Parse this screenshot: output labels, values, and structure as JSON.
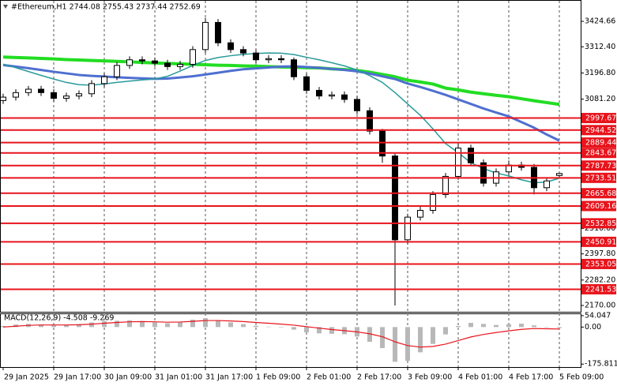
{
  "chart_data": [
    {
      "type": "candlestick",
      "title": "#Ethereum,H1  2744.08 2755.43 2737.44 2752.69",
      "categories": [
        "29 Jan 2025",
        null,
        null,
        null,
        "29 Jan 17:00",
        null,
        null,
        null,
        "30 Jan 09:00",
        null,
        null,
        null,
        "31 Jan 01:00",
        null,
        null,
        null,
        "31 Jan 17:00",
        null,
        null,
        null,
        "1 Feb 09:00",
        null,
        null,
        null,
        "2 Feb 01:00",
        null,
        null,
        null,
        "2 Feb 17:00",
        null,
        null,
        null,
        "3 Feb 09:00",
        null,
        null,
        null,
        "4 Feb 01:00",
        null,
        null,
        null,
        "4 Feb 17:00",
        null,
        null,
        null,
        "5 Feb 09:00"
      ],
      "open": [
        3075,
        3090,
        3110,
        3125,
        3110,
        3085,
        3095,
        3105,
        3150,
        3180,
        3230,
        3255,
        3250,
        3240,
        3225,
        3235,
        3300,
        3420,
        3330,
        3300,
        3285,
        3255,
        3260,
        3255,
        3180,
        3120,
        3095,
        3100,
        3080,
        3030,
        2940,
        2830,
        2460,
        2560,
        2590,
        2660,
        2740,
        2865,
        2800,
        2710,
        2760,
        2790,
        2780,
        2690,
        2744.08
      ],
      "high": [
        3105,
        3125,
        3140,
        3140,
        3125,
        3110,
        3120,
        3165,
        3195,
        3245,
        3270,
        3270,
        3265,
        3255,
        3250,
        3315,
        3440,
        3435,
        3345,
        3315,
        3300,
        3275,
        3275,
        3265,
        3195,
        3135,
        3115,
        3115,
        3095,
        3045,
        2950,
        2840,
        2575,
        2610,
        2675,
        2755,
        2890,
        2880,
        2815,
        2775,
        2810,
        2805,
        2795,
        2735,
        2755.43
      ],
      "low": [
        3060,
        3075,
        3095,
        3095,
        3070,
        3070,
        3080,
        3090,
        3135,
        3165,
        3215,
        3235,
        3225,
        3210,
        3210,
        3220,
        3285,
        3315,
        3285,
        3270,
        3240,
        3240,
        3240,
        3165,
        3105,
        3080,
        3080,
        3065,
        3015,
        2925,
        2800,
        2170,
        2440,
        2545,
        2575,
        2645,
        2725,
        2785,
        2695,
        2695,
        2745,
        2765,
        2660,
        2675,
        2737.44
      ],
      "close": [
        3090,
        3110,
        3125,
        3110,
        3085,
        3095,
        3105,
        3150,
        3180,
        3230,
        3255,
        3250,
        3240,
        3225,
        3235,
        3300,
        3420,
        3330,
        3300,
        3285,
        3255,
        3260,
        3255,
        3180,
        3120,
        3095,
        3100,
        3080,
        3030,
        2940,
        2830,
        2460,
        2560,
        2590,
        2660,
        2740,
        2865,
        2800,
        2710,
        2760,
        2790,
        2780,
        2690,
        2720,
        2752.69
      ],
      "up_color": "#ffffff",
      "down_color": "#000000",
      "series": [
        {
          "color": "#22dd22",
          "width": 4,
          "values": [
            3267,
            3265,
            3263,
            3261,
            3259,
            3256,
            3254,
            3252,
            3250,
            3248,
            3246,
            3243,
            3241,
            3239,
            3237,
            3235,
            3233,
            3231,
            3230,
            3228,
            3227,
            3225,
            3223,
            3222,
            3220,
            3219,
            3215,
            3212,
            3208,
            3200,
            3190,
            3180,
            3165,
            3157,
            3148,
            3130,
            3122,
            3112,
            3105,
            3098,
            3092,
            3083,
            3074,
            3066,
            3058
          ]
        },
        {
          "color": "#4f6fd0",
          "width": 3,
          "values": [
            3232,
            3225,
            3218,
            3210,
            3202,
            3195,
            3188,
            3184,
            3181,
            3178,
            3175,
            3173,
            3171,
            3172,
            3177,
            3182,
            3190,
            3198,
            3206,
            3213,
            3217,
            3221,
            3225,
            3226,
            3223,
            3219,
            3215,
            3210,
            3204,
            3194,
            3182,
            3170,
            3150,
            3135,
            3118,
            3100,
            3080,
            3060,
            3040,
            3022,
            3005,
            2980,
            2955,
            2925,
            2898
          ]
        },
        {
          "color": "#2a9a9a",
          "width": 1.5,
          "values": [
            3236,
            3220,
            3203,
            3186,
            3170,
            3155,
            3145,
            3143,
            3148,
            3155,
            3161,
            3166,
            3170,
            3182,
            3205,
            3230,
            3252,
            3265,
            3273,
            3279,
            3283,
            3285,
            3284,
            3278,
            3266,
            3255,
            3242,
            3228,
            3210,
            3185,
            3155,
            3110,
            3060,
            3010,
            2950,
            2885,
            2845,
            2800,
            2775,
            2755,
            2742,
            2725,
            2712,
            2715,
            2732
          ]
        }
      ],
      "levels": [
        2997.67,
        2944.52,
        2889.44,
        2843.67,
        2787.73,
        2733.51,
        2665.68,
        2609.16,
        2532.85,
        2450.91,
        2353.05,
        2241.53
      ],
      "level_color": "#e8141c",
      "ylim": [
        2142,
        3519
      ],
      "yticks": [
        {
          "value": 3424.66,
          "label": "3424.66"
        },
        {
          "value": 3312.4,
          "label": "3312.40"
        },
        {
          "value": 3196.8,
          "label": "3196.80"
        },
        {
          "value": 3081.2,
          "label": "3081.20"
        },
        {
          "value": 2510,
          "label": "2510.00"
        },
        {
          "value": 2397.8,
          "label": "2397.80"
        },
        {
          "value": 2282.2,
          "label": "2282.20"
        },
        {
          "value": 2170,
          "label": "2170.00"
        }
      ],
      "grid": true
    },
    {
      "type": "macd",
      "title": "MACD(12,26,9) -4.508 -9.269",
      "values": [
        5,
        12,
        15,
        12,
        8,
        10,
        14,
        22,
        28,
        30,
        32,
        28,
        22,
        18,
        25,
        35,
        42,
        32,
        22,
        14,
        6,
        2,
        -2,
        -12,
        -25,
        -30,
        -32,
        -34,
        -45,
        -70,
        -100,
        -165,
        -160,
        -120,
        -80,
        -35,
        5,
        20,
        15,
        10,
        14,
        16,
        8,
        0,
        -4.508
      ],
      "color": "#b8b8b8",
      "series": [
        {
          "color": "#e8141c",
          "values": [
            0,
            4,
            8,
            10,
            10,
            10,
            11,
            14,
            18,
            22,
            25,
            26,
            25,
            23,
            24,
            27,
            31,
            31,
            29,
            26,
            22,
            18,
            14,
            9,
            2,
            -5,
            -12,
            -17,
            -23,
            -32,
            -46,
            -70,
            -88,
            -95,
            -92,
            -81,
            -64,
            -47,
            -35,
            -26,
            -18,
            -11,
            -7,
            -8,
            -9.269
          ]
        }
      ],
      "ylim": [
        -190,
        65
      ],
      "yticks": [
        54.047,
        {
          "value": 0,
          "label": "0.00"
        },
        -175.811
      ]
    }
  ]
}
